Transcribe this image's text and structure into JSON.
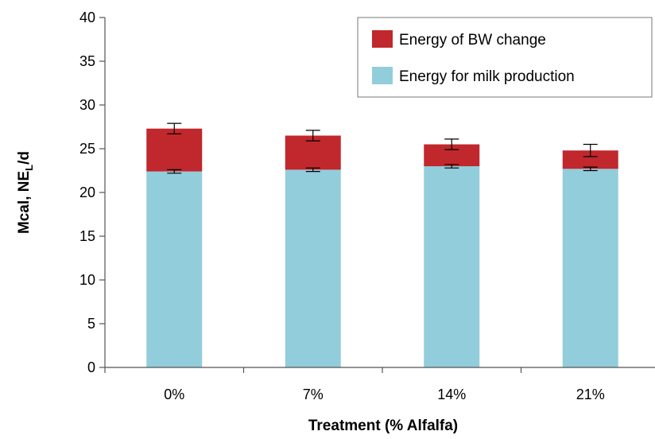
{
  "chart_data": {
    "type": "bar",
    "stacked": true,
    "categories": [
      "0%",
      "7%",
      "14%",
      "21%"
    ],
    "xlabel": "Treatment (% Alfalfa)",
    "ylabel": "Mcal, NE",
    "ylabel_sub": "L",
    "ylabel_suffix": "/d",
    "ylim": [
      0,
      40
    ],
    "yticks": [
      "0",
      "5",
      "10",
      "15",
      "20",
      "25",
      "30",
      "35",
      "40"
    ],
    "grid": false,
    "legend_position": "top-right",
    "series": [
      {
        "name": "Energy for milk production",
        "color": "#92cddc",
        "values": [
          22.4,
          22.6,
          23.0,
          22.7
        ],
        "error": [
          0.2,
          0.2,
          0.2,
          0.2
        ]
      },
      {
        "name": "Energy of BW change",
        "color": "#c0282d",
        "values": [
          4.9,
          3.9,
          2.5,
          2.1
        ],
        "error": [
          0.6,
          0.6,
          0.6,
          0.7
        ]
      }
    ],
    "legend_order": [
      1,
      0
    ]
  }
}
